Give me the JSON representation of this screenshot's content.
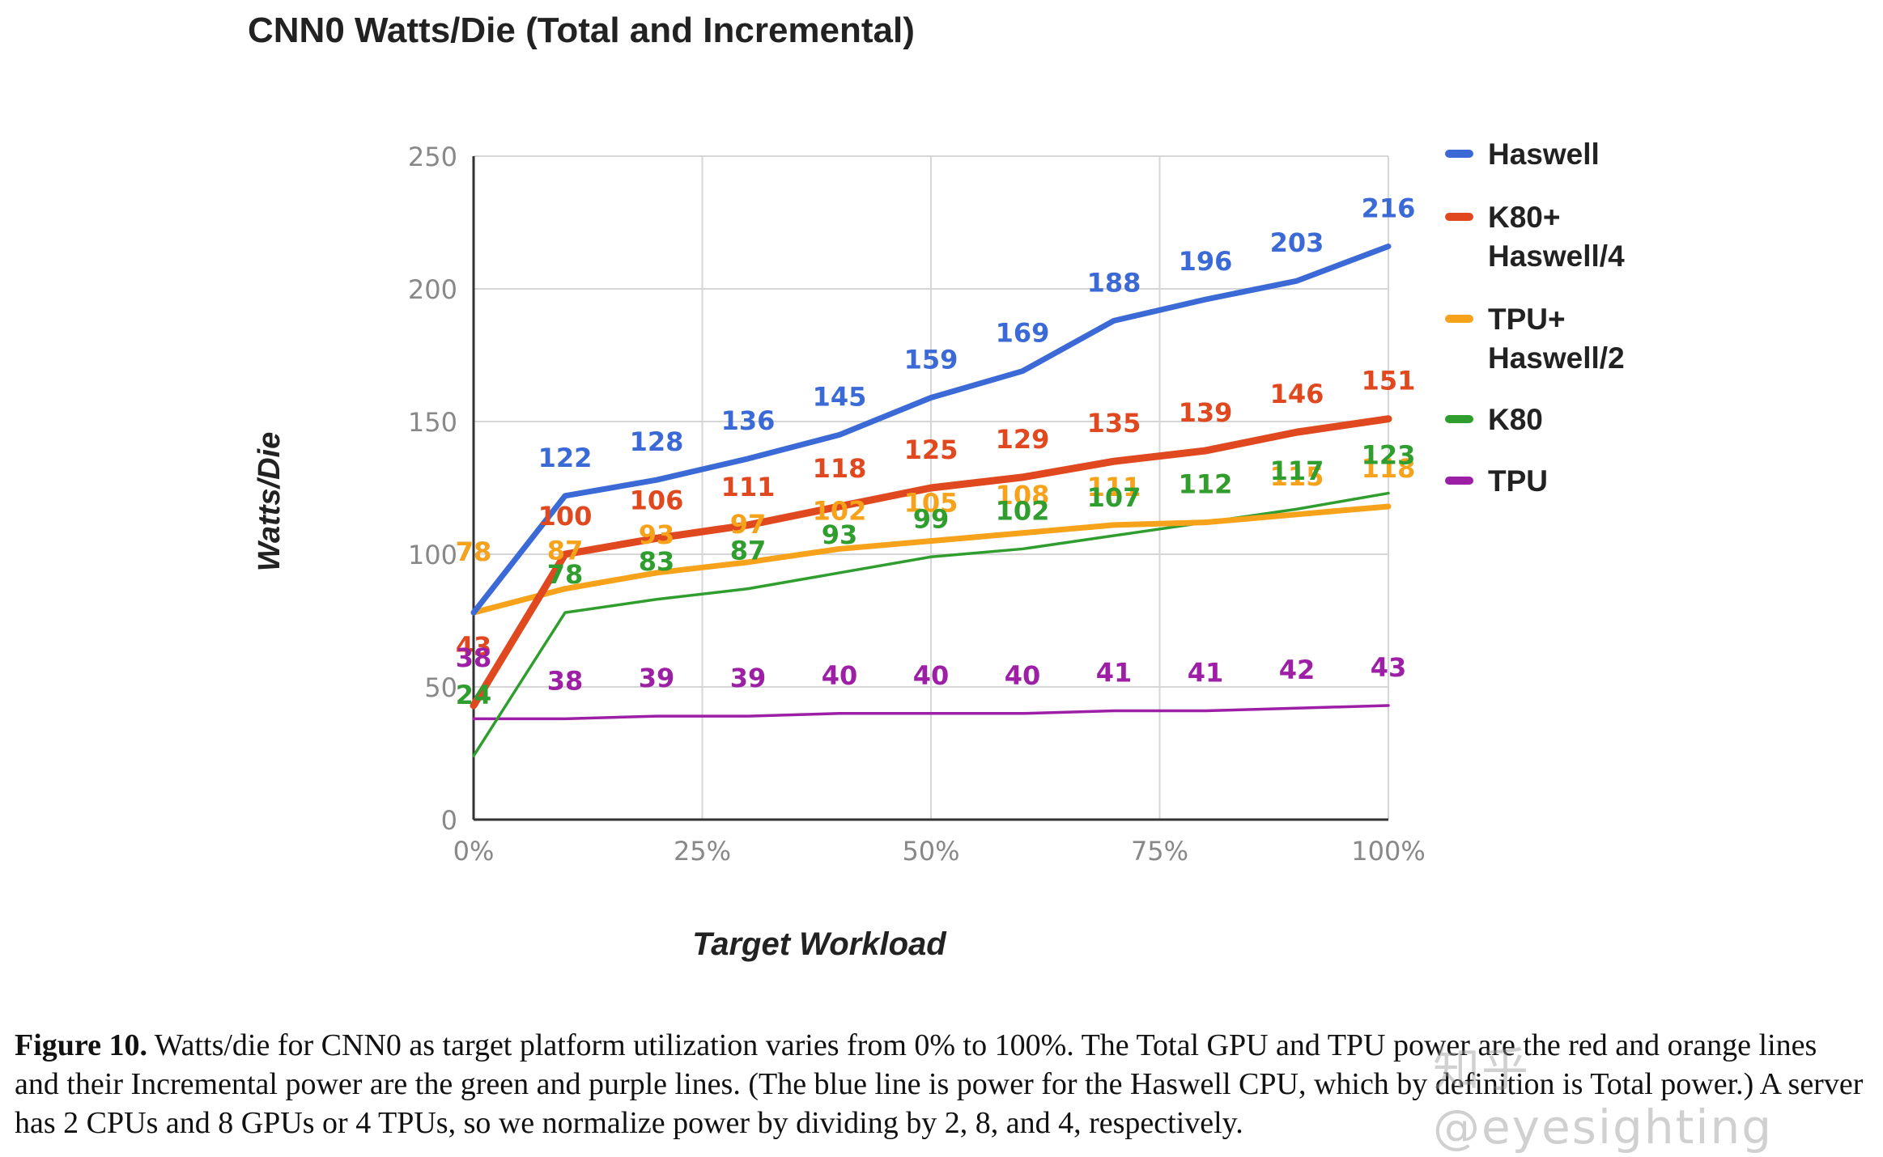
{
  "chart_data": {
    "type": "line",
    "title": "CNN0 Watts/Die (Total and Incremental)",
    "xlabel": "Target Workload",
    "ylabel": "Watts/Die",
    "x": [
      0,
      10,
      20,
      30,
      40,
      50,
      60,
      70,
      80,
      90,
      100
    ],
    "xlim": [
      0,
      100
    ],
    "ylim": [
      0,
      250
    ],
    "xticks": [
      "0%",
      "25%",
      "50%",
      "75%",
      "100%"
    ],
    "xtick_values": [
      0,
      25,
      50,
      75,
      100
    ],
    "yticks": [
      "0",
      "50",
      "100",
      "150",
      "200",
      "250"
    ],
    "ytick_values": [
      0,
      50,
      100,
      150,
      200,
      250
    ],
    "grid": true,
    "legend_position": "right",
    "series": [
      {
        "name": "Haswell",
        "legend": [
          "Haswell"
        ],
        "color": "#3b6ad6",
        "values": [
          78,
          122,
          128,
          136,
          145,
          159,
          169,
          188,
          196,
          203,
          216
        ]
      },
      {
        "name": "K80+ Haswell/4",
        "legend": [
          "K80+",
          "Haswell/4"
        ],
        "color": "#e0481f",
        "values": [
          43,
          100,
          106,
          111,
          118,
          125,
          129,
          135,
          139,
          146,
          151
        ]
      },
      {
        "name": "TPU+ Haswell/2",
        "legend": [
          "TPU+",
          "Haswell/2"
        ],
        "color": "#f7a21b",
        "values": [
          78,
          87,
          93,
          97,
          102,
          105,
          108,
          111,
          112,
          115,
          118
        ]
      },
      {
        "name": "K80",
        "legend": [
          "K80"
        ],
        "color": "#2f9e2f",
        "values": [
          24,
          78,
          83,
          87,
          93,
          99,
          102,
          107,
          112,
          117,
          123
        ]
      },
      {
        "name": "TPU",
        "legend": [
          "TPU"
        ],
        "color": "#9c1fa5",
        "values": [
          38,
          38,
          39,
          39,
          40,
          40,
          40,
          41,
          41,
          42,
          43
        ]
      }
    ]
  },
  "caption": {
    "label": "Figure 10.",
    "text": "Watts/die for CNN0 as target platform utilization varies from 0% to 100%. The Total GPU and TPU power are the red and orange lines and their Incremental power are the green and purple lines. (The blue line is power for the Haswell CPU, which by definition is Total power.) A server has 2 CPUs and 8 GPUs or 4 TPUs, so we normalize power by dividing by 2, 8, and 4, respectively."
  },
  "watermark": "知乎 @eyesighting"
}
